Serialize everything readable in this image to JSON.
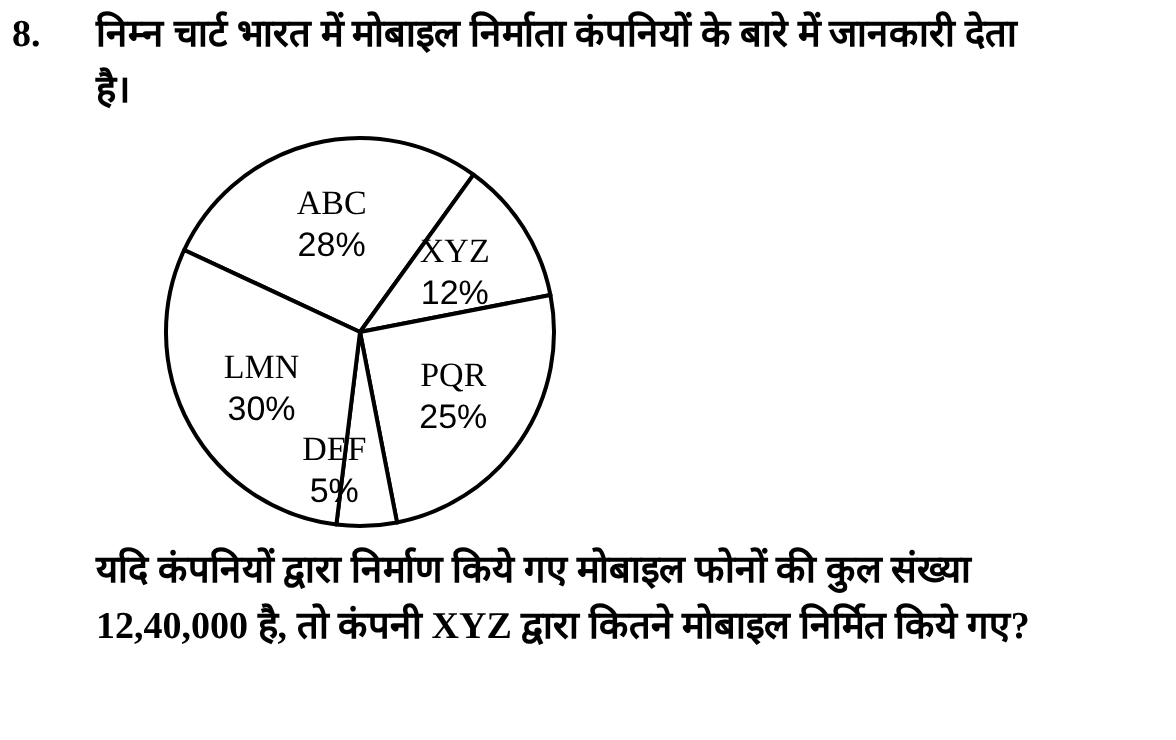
{
  "chart_data": {
    "type": "pie",
    "title": "निम्न चार्ट भारत में मोबाइल निर्माता कंपनियों के बारे में जानकारी देता है।",
    "categories": [
      "ABC",
      "XYZ",
      "PQR",
      "DEF",
      "LMN"
    ],
    "values": [
      28,
      12,
      25,
      5,
      30
    ],
    "value_labels": [
      "28%",
      "12%",
      "25%",
      "5%",
      "30%"
    ],
    "colors": [
      "#ffffff",
      "#ffffff",
      "#ffffff",
      "#ffffff",
      "#ffffff"
    ],
    "annotations": [
      "8.",
      "यदि कंपनियों द्वारा निर्माण किये गए मोबाइल फोनों की कुल संख्या 12,40,000 है, तो कंपनी XYZ द्वारा कितने मोबाइल निर्मित किये गए?"
    ]
  }
}
